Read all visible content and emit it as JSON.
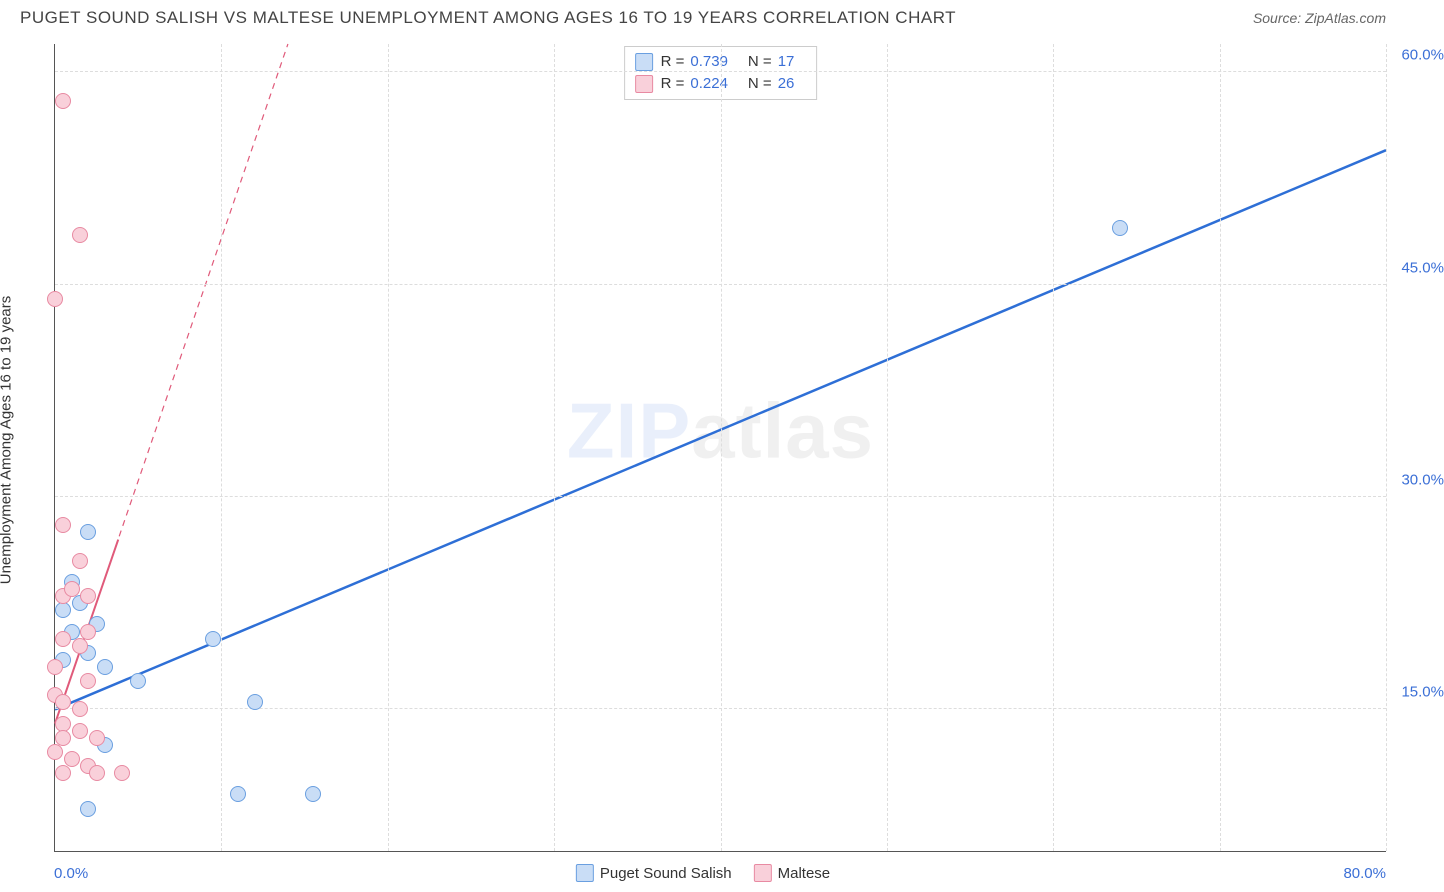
{
  "title": "PUGET SOUND SALISH VS MALTESE UNEMPLOYMENT AMONG AGES 16 TO 19 YEARS CORRELATION CHART",
  "source": "Source: ZipAtlas.com",
  "yaxis_label": "Unemployment Among Ages 16 to 19 years",
  "watermark_a": "ZIP",
  "watermark_b": "atlas",
  "chart": {
    "type": "scatter",
    "xlim": [
      0,
      80
    ],
    "ylim": [
      5,
      62
    ],
    "yticks": [
      15.0,
      30.0,
      45.0,
      60.0
    ],
    "ytick_labels": [
      "15.0%",
      "30.0%",
      "45.0%",
      "60.0%"
    ],
    "xtick_positions": [
      10,
      20,
      30,
      40,
      50,
      60,
      70,
      80
    ],
    "xlabel_min": "0.0%",
    "xlabel_max": "80.0%",
    "grid_color": "#dddddd",
    "axis_color": "#555555",
    "background_color": "#ffffff",
    "point_radius": 8,
    "series": [
      {
        "name": "Puget Sound Salish",
        "color_fill": "#c9ddf6",
        "color_stroke": "#6a9fe0",
        "r_label": "R =",
        "r_value": "0.739",
        "n_label": "N =",
        "n_value": "17",
        "trend": {
          "x1": 0,
          "y1": 15.0,
          "x2": 80,
          "y2": 54.5,
          "stroke": "#2e6fd6",
          "width": 2.5,
          "dash": ""
        },
        "points": [
          {
            "x": 1.5,
            "y": 22.5
          },
          {
            "x": 2.0,
            "y": 27.5
          },
          {
            "x": 1.0,
            "y": 20.5
          },
          {
            "x": 2.0,
            "y": 19.0
          },
          {
            "x": 3.0,
            "y": 18.0
          },
          {
            "x": 0.5,
            "y": 22.0
          },
          {
            "x": 5.0,
            "y": 17.0
          },
          {
            "x": 3.0,
            "y": 12.5
          },
          {
            "x": 9.5,
            "y": 20.0
          },
          {
            "x": 12.0,
            "y": 15.5
          },
          {
            "x": 2.0,
            "y": 8.0
          },
          {
            "x": 11.0,
            "y": 9.0
          },
          {
            "x": 15.5,
            "y": 9.0
          },
          {
            "x": 64.0,
            "y": 49.0
          },
          {
            "x": 1.0,
            "y": 24.0
          },
          {
            "x": 0.5,
            "y": 18.5
          },
          {
            "x": 2.5,
            "y": 21.0
          }
        ]
      },
      {
        "name": "Maltese",
        "color_fill": "#f9d0da",
        "color_stroke": "#e88aa2",
        "r_label": "R =",
        "r_value": "0.224",
        "n_label": "N =",
        "n_value": "26",
        "trend": {
          "x1": 0,
          "y1": 14.0,
          "x2": 14,
          "y2": 62,
          "stroke": "#e05a7a",
          "width": 1.2,
          "dash": "6 5"
        },
        "trend_head": {
          "x1": 0,
          "y1": 14.0,
          "x2": 3.8,
          "y2": 27.0,
          "stroke": "#e05a7a",
          "width": 2,
          "dash": ""
        },
        "points": [
          {
            "x": 0.5,
            "y": 58.0
          },
          {
            "x": 1.5,
            "y": 48.5
          },
          {
            "x": 0.0,
            "y": 44.0
          },
          {
            "x": 0.5,
            "y": 28.0
          },
          {
            "x": 1.5,
            "y": 25.5
          },
          {
            "x": 0.5,
            "y": 23.0
          },
          {
            "x": 1.0,
            "y": 23.5
          },
          {
            "x": 2.0,
            "y": 23.0
          },
          {
            "x": 0.5,
            "y": 20.0
          },
          {
            "x": 1.5,
            "y": 19.5
          },
          {
            "x": 0.0,
            "y": 18.0
          },
          {
            "x": 2.0,
            "y": 20.5
          },
          {
            "x": 0.0,
            "y": 16.0
          },
          {
            "x": 0.5,
            "y": 14.0
          },
          {
            "x": 0.5,
            "y": 13.0
          },
          {
            "x": 1.5,
            "y": 13.5
          },
          {
            "x": 2.5,
            "y": 13.0
          },
          {
            "x": 1.0,
            "y": 11.5
          },
          {
            "x": 2.0,
            "y": 11.0
          },
          {
            "x": 0.0,
            "y": 12.0
          },
          {
            "x": 0.5,
            "y": 10.5
          },
          {
            "x": 2.5,
            "y": 10.5
          },
          {
            "x": 4.0,
            "y": 10.5
          },
          {
            "x": 1.5,
            "y": 15.0
          },
          {
            "x": 0.5,
            "y": 15.5
          },
          {
            "x": 2.0,
            "y": 17.0
          }
        ]
      }
    ]
  }
}
